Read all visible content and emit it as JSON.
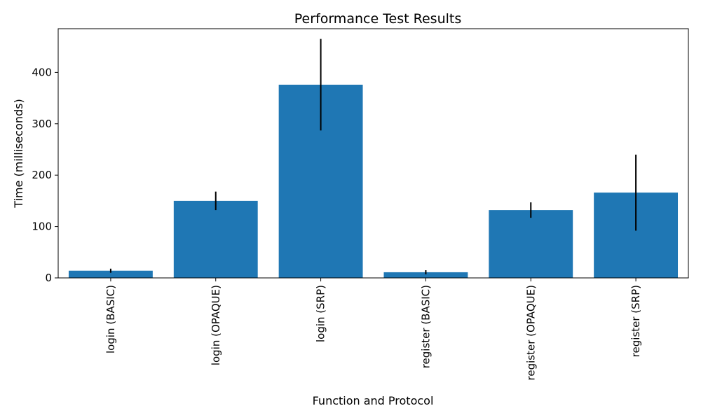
{
  "chart_data": {
    "type": "bar",
    "title": "Performance Test Results",
    "xlabel": "Function and Protocol",
    "ylabel": "Time (milliseconds)",
    "categories": [
      "login (BASIC)",
      "login (OPAQUE)",
      "login (SRP)",
      "register (BASIC)",
      "register (OPAQUE)",
      "register (SRP)"
    ],
    "values": [
      14,
      150,
      376,
      11,
      132,
      166
    ],
    "errors": [
      4,
      18,
      89,
      4,
      15,
      74
    ],
    "ylim": [
      0,
      485
    ],
    "yticks": [
      0,
      100,
      200,
      300,
      400
    ],
    "bar_color": "#1f77b4",
    "error_color": "#000000",
    "grid": false,
    "x_tick_rotation": "vertical"
  }
}
